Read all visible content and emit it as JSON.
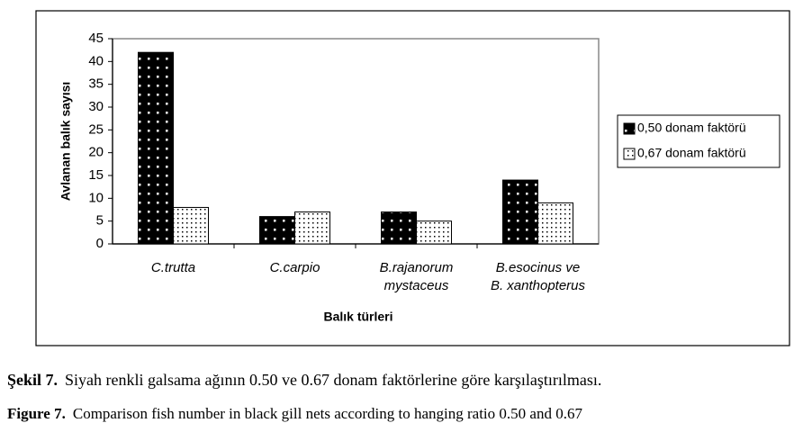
{
  "chart_data": {
    "type": "bar",
    "categories": [
      "C.trutta",
      "C.carpio",
      "B.rajanorum\nmystaceus",
      "B.esocinus ve\nB. xanthopterus"
    ],
    "series": [
      {
        "name": "0,50 donam faktörü",
        "color": "#000000",
        "values": [
          42,
          6,
          7,
          14
        ]
      },
      {
        "name": "0,67 donam faktörü",
        "color": "#ffffff",
        "values": [
          8,
          7,
          5,
          9
        ]
      }
    ],
    "y_label": "Avlanan balık sayısı",
    "x_label": "Balık türleri",
    "ylim": [
      0,
      45
    ],
    "yticks": [
      0,
      5,
      10,
      15,
      20,
      25,
      30,
      35,
      40,
      45
    ],
    "legend": "right"
  },
  "captions": [
    {
      "label": "Şekil 7.",
      "text": "Siyah renkli galsama ağının 0.50 ve 0.67 donam faktörlerine göre karşılaştırılması."
    },
    {
      "label": "Figure 7.",
      "text": "Comparison fish number in black gill nets according to hanging ratio 0.50 and 0.67"
    }
  ]
}
